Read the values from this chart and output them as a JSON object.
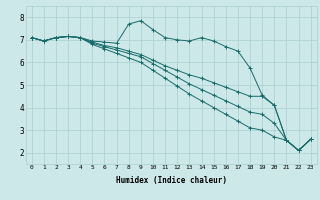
{
  "xlabel": "Humidex (Indice chaleur)",
  "bg_color": "#cce8e8",
  "grid_color": "#aacfcf",
  "line_color": "#1a6b6b",
  "xlim": [
    -0.5,
    23.5
  ],
  "ylim": [
    1.5,
    8.5
  ],
  "xticks": [
    0,
    1,
    2,
    3,
    4,
    5,
    6,
    7,
    8,
    9,
    10,
    11,
    12,
    13,
    14,
    15,
    16,
    17,
    18,
    19,
    20,
    21,
    22,
    23
  ],
  "yticks": [
    2,
    3,
    4,
    5,
    6,
    7,
    8
  ],
  "series": [
    [
      7.1,
      6.95,
      7.1,
      7.15,
      7.1,
      6.95,
      6.9,
      6.85,
      7.7,
      7.85,
      7.45,
      7.1,
      7.0,
      6.95,
      7.1,
      6.95,
      6.7,
      6.5,
      5.75,
      4.55,
      4.1,
      2.55,
      2.1,
      2.6
    ],
    [
      7.1,
      6.95,
      7.1,
      7.15,
      7.1,
      6.9,
      6.75,
      6.65,
      6.5,
      6.35,
      6.1,
      5.85,
      5.65,
      5.45,
      5.3,
      5.1,
      4.9,
      4.7,
      4.5,
      4.5,
      4.1,
      2.55,
      2.1,
      2.6
    ],
    [
      7.1,
      6.95,
      7.1,
      7.15,
      7.1,
      6.85,
      6.7,
      6.55,
      6.4,
      6.25,
      5.95,
      5.65,
      5.35,
      5.05,
      4.8,
      4.55,
      4.3,
      4.05,
      3.8,
      3.7,
      3.3,
      2.55,
      2.1,
      2.6
    ],
    [
      7.1,
      6.95,
      7.1,
      7.15,
      7.1,
      6.8,
      6.6,
      6.4,
      6.2,
      6.0,
      5.65,
      5.3,
      4.95,
      4.6,
      4.3,
      4.0,
      3.7,
      3.4,
      3.1,
      3.0,
      2.7,
      2.55,
      2.1,
      2.6
    ]
  ]
}
